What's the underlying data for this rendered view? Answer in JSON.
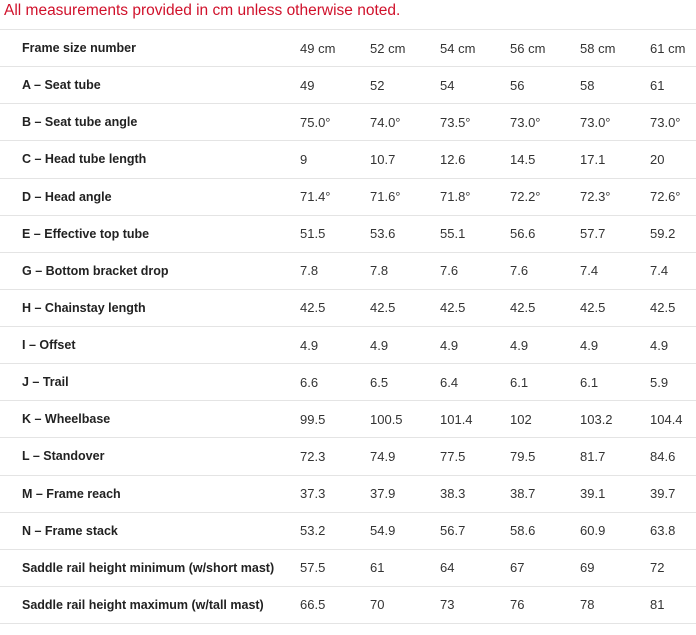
{
  "note": "All measurements provided in cm unless otherwise noted.",
  "table": {
    "rows": [
      {
        "label": "Frame size number",
        "values": [
          "49 cm",
          "52 cm",
          "54 cm",
          "56 cm",
          "58 cm",
          "61 cm"
        ]
      },
      {
        "label": "A – Seat tube",
        "values": [
          "49",
          "52",
          "54",
          "56",
          "58",
          "61"
        ]
      },
      {
        "label": "B – Seat tube angle",
        "values": [
          "75.0°",
          "74.0°",
          "73.5°",
          "73.0°",
          "73.0°",
          "73.0°"
        ]
      },
      {
        "label": "C – Head tube length",
        "values": [
          "9",
          "10.7",
          "12.6",
          "14.5",
          "17.1",
          "20"
        ]
      },
      {
        "label": "D – Head angle",
        "values": [
          "71.4°",
          "71.6°",
          "71.8°",
          "72.2°",
          "72.3°",
          "72.6°"
        ]
      },
      {
        "label": "E – Effective top tube",
        "values": [
          "51.5",
          "53.6",
          "55.1",
          "56.6",
          "57.7",
          "59.2"
        ]
      },
      {
        "label": "G – Bottom bracket drop",
        "values": [
          "7.8",
          "7.8",
          "7.6",
          "7.6",
          "7.4",
          "7.4"
        ]
      },
      {
        "label": "H – Chainstay length",
        "values": [
          "42.5",
          "42.5",
          "42.5",
          "42.5",
          "42.5",
          "42.5"
        ]
      },
      {
        "label": "I – Offset",
        "values": [
          "4.9",
          "4.9",
          "4.9",
          "4.9",
          "4.9",
          "4.9"
        ]
      },
      {
        "label": "J – Trail",
        "values": [
          "6.6",
          "6.5",
          "6.4",
          "6.1",
          "6.1",
          "5.9"
        ]
      },
      {
        "label": "K – Wheelbase",
        "values": [
          "99.5",
          "100.5",
          "101.4",
          "102",
          "103.2",
          "104.4"
        ]
      },
      {
        "label": "L – Standover",
        "values": [
          "72.3",
          "74.9",
          "77.5",
          "79.5",
          "81.7",
          "84.6"
        ]
      },
      {
        "label": "M – Frame reach",
        "values": [
          "37.3",
          "37.9",
          "38.3",
          "38.7",
          "39.1",
          "39.7"
        ]
      },
      {
        "label": "N – Frame stack",
        "values": [
          "53.2",
          "54.9",
          "56.7",
          "58.6",
          "60.9",
          "63.8"
        ]
      },
      {
        "label": "Saddle rail height minimum (w/short mast)",
        "values": [
          "57.5",
          "61",
          "64",
          "67",
          "69",
          "72"
        ]
      },
      {
        "label": "Saddle rail height maximum (w/tall mast)",
        "values": [
          "66.5",
          "70",
          "73",
          "76",
          "78",
          "81"
        ]
      }
    ]
  },
  "colors": {
    "note": "#d0112b",
    "text": "#333333",
    "divider": "#e4e4e4"
  }
}
